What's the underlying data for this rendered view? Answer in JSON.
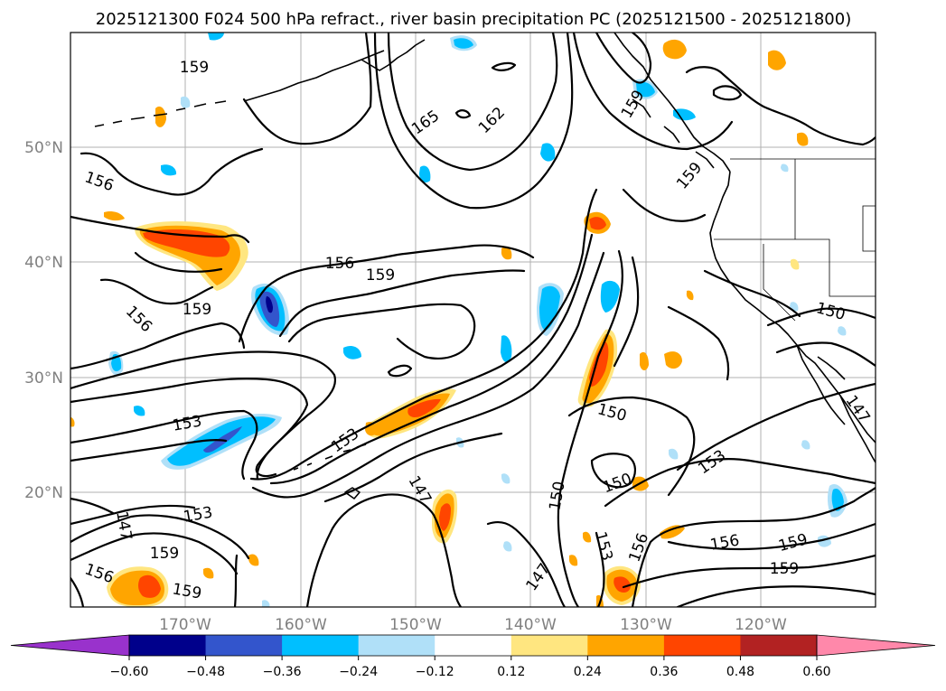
{
  "title": "2025121300 F024 500 hPa refract., river basin precipitation PC (2025121500 - 2025121800)",
  "lat_ticks": [
    "50°N",
    "40°N",
    "30°N",
    "20°N"
  ],
  "lon_ticks": [
    "170°W",
    "160°W",
    "150°W",
    "140°W",
    "130°W",
    "120°W"
  ],
  "contour_labels": [
    "159",
    "165",
    "162",
    "159",
    "159",
    "156",
    "156",
    "159",
    "156",
    "159",
    "150",
    "153",
    "150",
    "147",
    "153",
    "153",
    "150",
    "150",
    "147",
    "153",
    "147",
    "159",
    "153",
    "156",
    "156",
    "159",
    "159",
    "156",
    "159",
    "147"
  ],
  "colorbar": {
    "levels": [
      "−0.60",
      "−0.48",
      "−0.36",
      "−0.24",
      "−0.12",
      "0.12",
      "0.24",
      "0.36",
      "0.48",
      "0.60"
    ],
    "colors": [
      "#9932cc",
      "#00008b",
      "#3355cc",
      "#00bfff",
      "#b0e0f8",
      "#ffffff",
      "#ffe680",
      "#ffa500",
      "#ff4500",
      "#b22222",
      "#ff88aa"
    ]
  },
  "colors": {
    "pos_light": "#ffe680",
    "pos_mid": "#ffa500",
    "pos_strong": "#ff4500",
    "neg_light": "#b0e0f8",
    "neg_mid": "#00bfff",
    "neg_strong": "#3355cc",
    "neg_deep": "#00008b"
  }
}
